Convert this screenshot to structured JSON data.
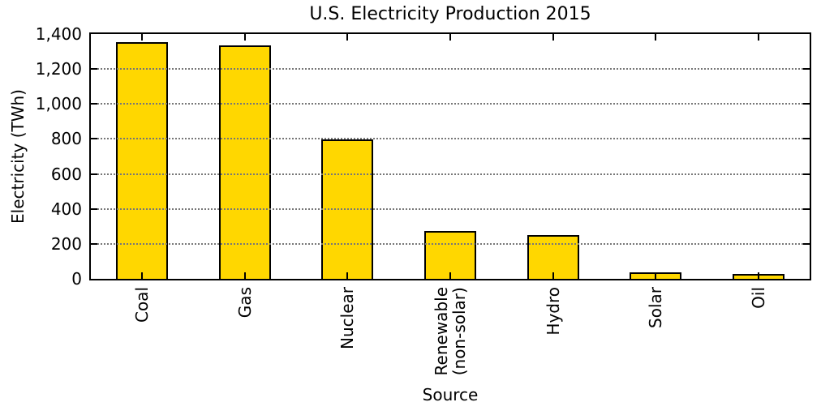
{
  "chart_data": {
    "type": "bar",
    "title": "U.S. Electricity Production 2015",
    "xlabel": "Source",
    "ylabel": "Electricity (TWh)",
    "categories": [
      "Coal",
      "Gas",
      "Nuclear",
      "Renewable\n(non-solar)",
      "Hydro",
      "Solar",
      "Oil"
    ],
    "values": [
      1352,
      1333,
      797,
      273,
      249,
      39,
      28
    ],
    "ylim": [
      0,
      1400
    ],
    "ytick_step": 200,
    "ytick_labels": [
      "0",
      "200",
      "400",
      "600",
      "800",
      "1,000",
      "1,200",
      "1,400"
    ],
    "grid": "horizontal-dotted-front",
    "legend_position": "none",
    "bar_color": "#FFD700",
    "bar_edge_color": "#000000",
    "axis_color": "#000000",
    "grid_color": "#777777"
  }
}
